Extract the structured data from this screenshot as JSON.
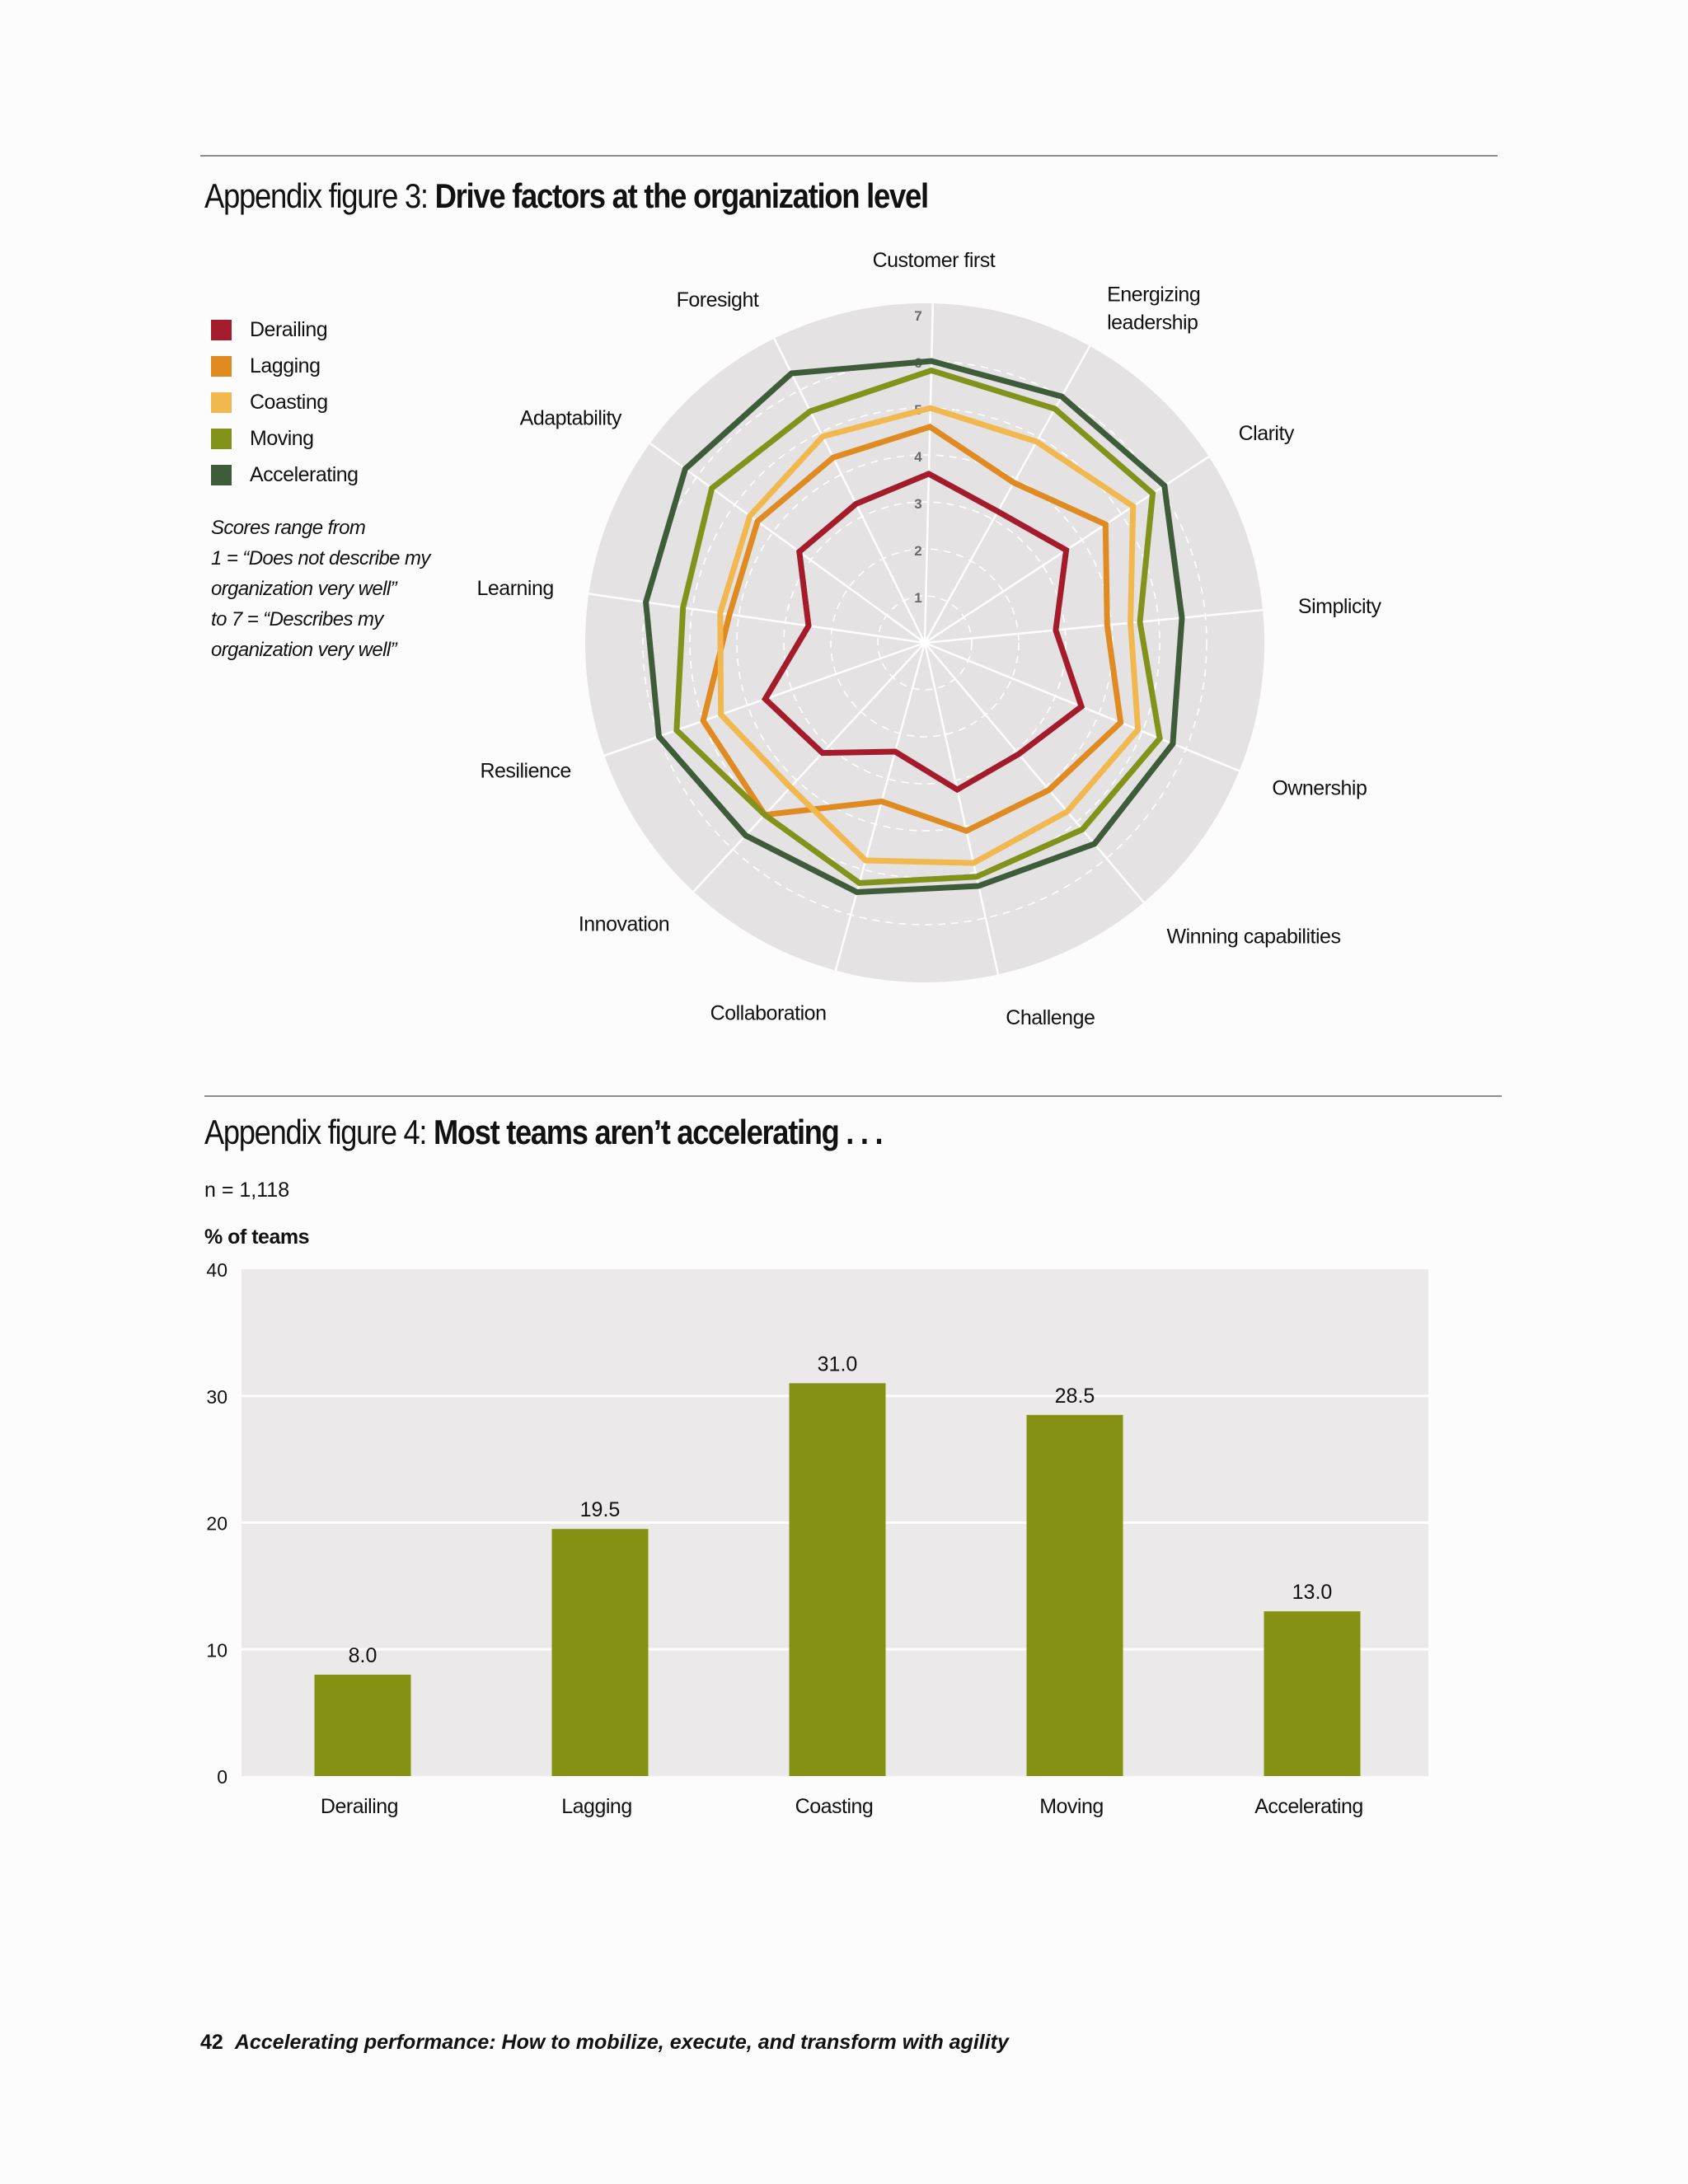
{
  "colors": {
    "Derailing": "#a41c2c",
    "Lagging": "#e08a22",
    "Coasting": "#f0b84e",
    "Moving": "#83921a",
    "Accelerating": "#3e5b3a",
    "bar": "#849112",
    "panel": "#e4e2e2"
  },
  "figure3": {
    "title_prefix": "Appendix figure 3: ",
    "title_bold": "Drive factors at the organization level",
    "note_lines": [
      "Scores range from",
      "1 = “Does not describe my",
      "organization very well”",
      "to 7 = “Describes my",
      "organization very well”"
    ]
  },
  "figure4": {
    "title_prefix": "Appendix figure 4: ",
    "title_bold": "Most teams aren’t accelerating . . .",
    "n_label": "n = 1,118",
    "ylabel": "% of teams"
  },
  "footer": {
    "page": "42",
    "title": "Accelerating performance: How to mobilize, execute, and transform with agility"
  },
  "chart_data": [
    {
      "type": "radar",
      "axes": [
        "Customer first",
        "Energizing leadership",
        "Clarity",
        "Simplicity",
        "Ownership",
        "Winning capabilities",
        "Challenge",
        "Collaboration",
        "Innovation",
        "Resilience",
        "Learning",
        "Adaptability",
        "Foresight"
      ],
      "axis_labels": [
        [
          "Customer first"
        ],
        [
          "Energizing",
          "leadership"
        ],
        [
          "Clarity"
        ],
        [
          "Simplicity"
        ],
        [
          "Ownership"
        ],
        [
          "Winning capabilities"
        ],
        [
          "Challenge"
        ],
        [
          "Collaboration"
        ],
        [
          "Innovation"
        ],
        [
          "Resilience"
        ],
        [
          "Learning"
        ],
        [
          "Adaptability"
        ],
        [
          "Foresight"
        ]
      ],
      "rlim": [
        0,
        7
      ],
      "ticks": [
        1,
        2,
        3,
        4,
        5,
        6,
        7
      ],
      "grid": true,
      "legend": "top-left",
      "series": [
        {
          "name": "Derailing",
          "values": [
            3.6,
            3.2,
            3.6,
            2.8,
            3.6,
            3.1,
            3.2,
            2.4,
            3.2,
            3.6,
            2.5,
            3.3,
            3.3
          ]
        },
        {
          "name": "Lagging",
          "values": [
            4.6,
            3.9,
            4.6,
            3.9,
            4.5,
            4.1,
            4.1,
            3.5,
            5.0,
            5.0,
            4.2,
            4.4,
            4.4
          ]
        },
        {
          "name": "Coasting",
          "values": [
            5.0,
            4.9,
            5.3,
            4.4,
            4.9,
            4.7,
            4.8,
            4.8,
            4.2,
            4.6,
            4.4,
            4.6,
            4.9
          ]
        },
        {
          "name": "Moving",
          "values": [
            5.8,
            5.7,
            5.8,
            4.6,
            5.4,
            5.2,
            5.1,
            5.3,
            5.0,
            5.6,
            5.2,
            5.6,
            5.5
          ]
        },
        {
          "name": "Accelerating",
          "values": [
            6.0,
            6.0,
            6.1,
            5.5,
            5.7,
            5.6,
            5.3,
            5.5,
            5.6,
            6.0,
            6.0,
            6.3,
            6.4
          ]
        }
      ]
    },
    {
      "type": "bar",
      "categories": [
        "Derailing",
        "Lagging",
        "Coasting",
        "Moving",
        "Accelerating"
      ],
      "values": [
        8.0,
        19.5,
        31.0,
        28.5,
        13.0
      ],
      "data_labels": [
        "8.0",
        "19.5",
        "31.0",
        "28.5",
        "13.0"
      ],
      "ylabel": "% of teams",
      "ylim": [
        0,
        40
      ],
      "yticks": [
        0,
        10,
        20,
        30,
        40
      ],
      "grid": true
    }
  ]
}
